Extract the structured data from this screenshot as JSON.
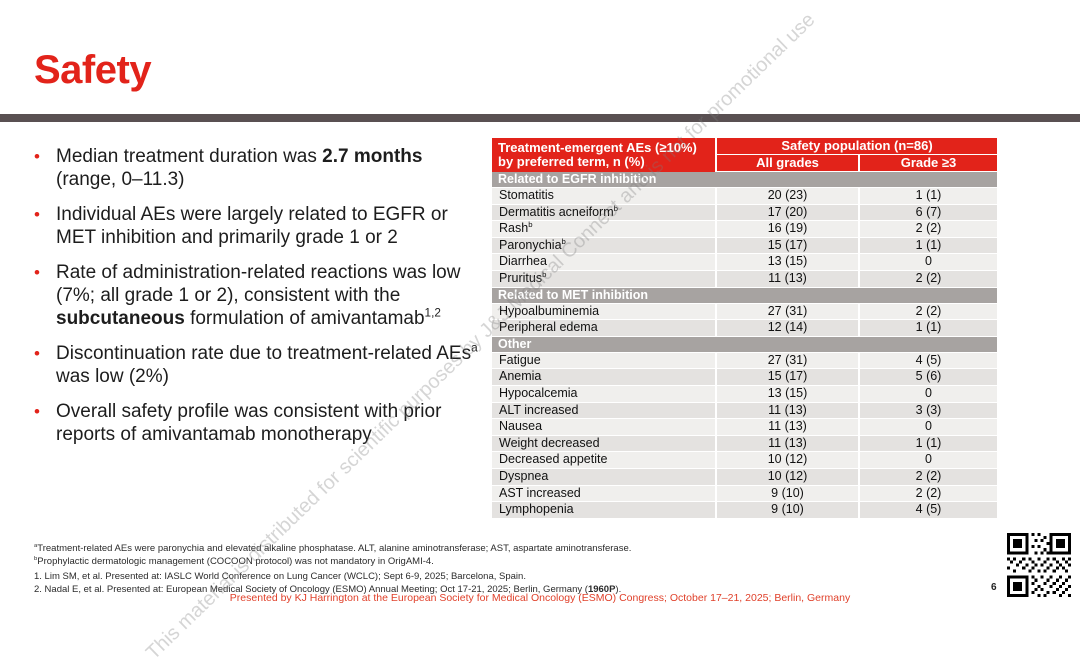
{
  "slide": {
    "title": "Safety",
    "page_number": "6",
    "footer": "Presented by KJ Harrington at the European Society for Medical Oncology (ESMO) Congress; October 17–21, 2025; Berlin, Germany"
  },
  "colors": {
    "primary_red": "#e2231a",
    "title_bar_gray": "#595052",
    "section_header_gray": "#a7a3a1",
    "row_light": "#f0efed",
    "row_dark": "#e4e2e0",
    "footer_red": "#e0402a"
  },
  "watermark": {
    "text": "This material is distributed for scientific purposes by J&J Medical Connect and is not for promotional use"
  },
  "bullets": [
    {
      "segments": [
        {
          "t": "Median treatment duration was "
        },
        {
          "t": "2.7 months",
          "b": true
        },
        {
          "t": " (range, 0–11.3)"
        }
      ]
    },
    {
      "segments": [
        {
          "t": "Individual AEs were largely related to EGFR or MET inhibition and primarily grade 1 or 2"
        }
      ]
    },
    {
      "segments": [
        {
          "t": "Rate of administration-related reactions was low (7%; all grade 1 or 2), consistent with the "
        },
        {
          "t": "subcutaneous",
          "b": true
        },
        {
          "t": " formulation of amivantamab"
        },
        {
          "t": "1,2",
          "sup": true
        }
      ]
    },
    {
      "segments": [
        {
          "t": "Discontinuation rate due to treatment-related AEs"
        },
        {
          "t": "a",
          "sup": true
        },
        {
          "t": " was low (2%)"
        }
      ]
    },
    {
      "segments": [
        {
          "t": "Overall safety profile was consistent with prior reports of amivantamab monotherapy"
        }
      ]
    }
  ],
  "table": {
    "col1_header_line1": "Treatment-emergent AEs (≥10%)",
    "col1_header_line2": "by preferred term, n (%)",
    "span_header": "Safety population (n=86)",
    "col2_header": "All grades",
    "col3_header": "Grade ≥3",
    "sections": [
      {
        "title": "Related to EGFR inhibition",
        "rows": [
          {
            "label": "Stomatitis",
            "all_grades": "20 (23)",
            "grade3": "1 (1)"
          },
          {
            "label": "Dermatitis acneiform",
            "sup": "b",
            "all_grades": "17 (20)",
            "grade3": "6 (7)"
          },
          {
            "label": "Rash",
            "sup": "b",
            "all_grades": "16 (19)",
            "grade3": "2 (2)"
          },
          {
            "label": "Paronychia",
            "sup": "b",
            "all_grades": "15 (17)",
            "grade3": "1 (1)"
          },
          {
            "label": "Diarrhea",
            "all_grades": "13 (15)",
            "grade3": "0"
          },
          {
            "label": "Pruritus",
            "sup": "b",
            "all_grades": "11 (13)",
            "grade3": "2 (2)"
          }
        ]
      },
      {
        "title": "Related to MET inhibition",
        "rows": [
          {
            "label": "Hypoalbuminemia",
            "all_grades": "27 (31)",
            "grade3": "2 (2)"
          },
          {
            "label": "Peripheral edema",
            "all_grades": "12 (14)",
            "grade3": "1 (1)"
          }
        ]
      },
      {
        "title": "Other",
        "rows": [
          {
            "label": "Fatigue",
            "all_grades": "27 (31)",
            "grade3": "4 (5)"
          },
          {
            "label": "Anemia",
            "all_grades": "15 (17)",
            "grade3": "5 (6)"
          },
          {
            "label": "Hypocalcemia",
            "all_grades": "13 (15)",
            "grade3": "0"
          },
          {
            "label": "ALT increased",
            "all_grades": "11 (13)",
            "grade3": "3 (3)"
          },
          {
            "label": "Nausea",
            "all_grades": "11 (13)",
            "grade3": "0"
          },
          {
            "label": "Weight decreased",
            "all_grades": "11 (13)",
            "grade3": "1 (1)"
          },
          {
            "label": "Decreased appetite",
            "all_grades": "10 (12)",
            "grade3": "0"
          },
          {
            "label": "Dyspnea",
            "all_grades": "10 (12)",
            "grade3": "2 (2)"
          },
          {
            "label": "AST increased",
            "all_grades": "9 (10)",
            "grade3": "2 (2)"
          },
          {
            "label": "Lymphopenia",
            "all_grades": "9 (10)",
            "grade3": "4 (5)"
          }
        ]
      }
    ]
  },
  "footnotes": [
    {
      "segments": [
        {
          "t": "a",
          "sup": true
        },
        {
          "t": "Treatment-related AEs were paronychia and elevated alkaline phosphatase. ALT, alanine aminotransferase; AST, aspartate aminotransferase."
        }
      ]
    },
    {
      "segments": [
        {
          "t": "b",
          "sup": true
        },
        {
          "t": "Prophylactic dermatologic management (COCOON protocol) was not mandatory in OrigAMI-4."
        }
      ]
    }
  ],
  "references": [
    {
      "segments": [
        {
          "t": "1. Lim SM, et al. Presented at: IASLC World Conference on Lung Cancer (WCLC); Sept 6-9, 2025; Barcelona, Spain."
        }
      ]
    },
    {
      "segments": [
        {
          "t": "2. Nadal E, et al. Presented at: European Medical Society of Oncology (ESMO) Annual Meeting; Oct 17-21, 2025; Berlin, Germany ("
        },
        {
          "t": "1960P",
          "b": true
        },
        {
          "t": ")."
        }
      ]
    }
  ]
}
